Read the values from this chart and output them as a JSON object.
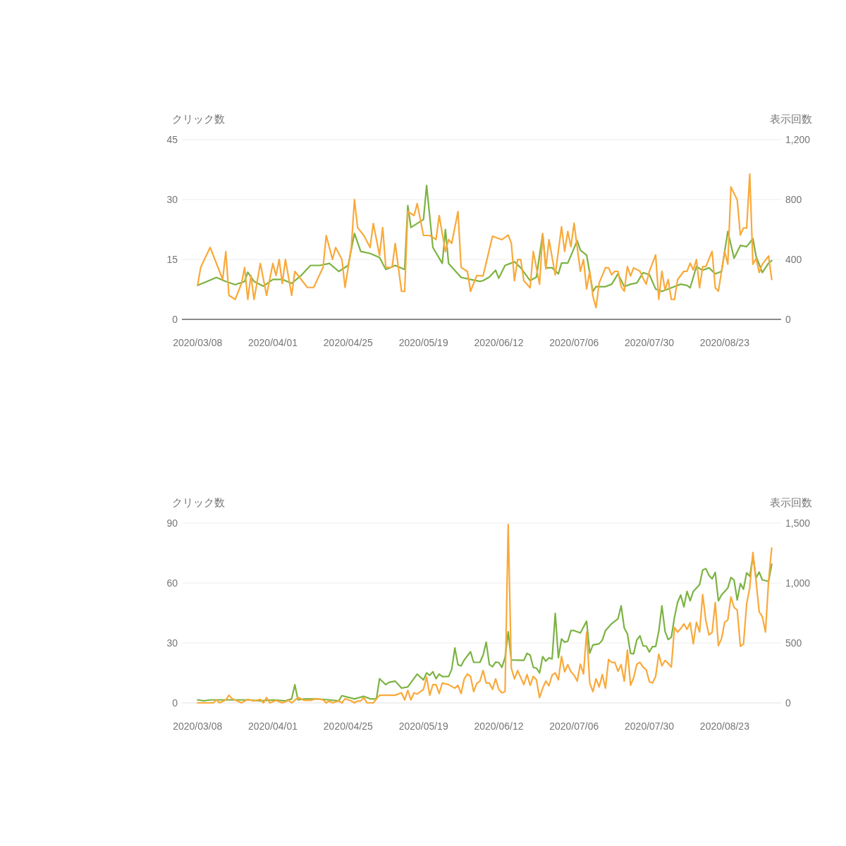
{
  "chart_data": [
    {
      "type": "line",
      "ylabel": "クリック数",
      "y2label": "表示回数",
      "xlim": [
        "2020-03-03",
        "2020-09-10"
      ],
      "xticks": [
        {
          "value": "2020-03-08",
          "label": "2020/03/08"
        },
        {
          "value": "2020-04-01",
          "label": "2020/04/01"
        },
        {
          "value": "2020-04-25",
          "label": "2020/04/25"
        },
        {
          "value": "2020-05-19",
          "label": "2020/05/19"
        },
        {
          "value": "2020-06-12",
          "label": "2020/06/12"
        },
        {
          "value": "2020-07-06",
          "label": "2020/07/06"
        },
        {
          "value": "2020-07-30",
          "label": "2020/07/30"
        },
        {
          "value": "2020-08-23",
          "label": "2020/08/23"
        }
      ],
      "ylim": [
        0,
        45
      ],
      "yticks": [
        0,
        15,
        30,
        45
      ],
      "y2lim": [
        0,
        1200
      ],
      "y2ticks": [
        0,
        400,
        800,
        {
          "value": 1200,
          "label": "1,200"
        }
      ],
      "grid": "y",
      "series": [
        {
          "color": "#7cb342",
          "x": [
            "2020-03-08",
            "2020-03-11",
            "2020-03-14",
            "2020-03-17",
            "2020-03-20",
            "2020-03-23",
            "2020-03-24",
            "2020-03-26",
            "2020-03-29",
            "2020-04-01",
            "2020-04-04",
            "2020-04-07",
            "2020-04-10",
            "2020-04-13",
            "2020-04-16",
            "2020-04-19",
            "2020-04-22",
            "2020-04-25",
            "2020-04-27",
            "2020-04-29",
            "2020-05-02",
            "2020-05-05",
            "2020-05-07",
            "2020-05-10",
            "2020-05-13",
            "2020-05-14",
            "2020-05-15",
            "2020-05-19",
            "2020-05-20",
            "2020-05-22",
            "2020-05-25",
            "2020-05-26",
            "2020-05-27",
            "2020-05-31",
            "2020-06-03",
            "2020-06-06",
            "2020-06-07",
            "2020-06-09",
            "2020-06-11",
            "2020-06-12",
            "2020-06-14",
            "2020-06-16",
            "2020-06-17",
            "2020-06-19",
            "2020-06-22",
            "2020-06-24",
            "2020-06-26",
            "2020-06-27",
            "2020-06-29",
            "2020-07-01",
            "2020-07-02",
            "2020-07-04",
            "2020-07-07",
            "2020-07-08",
            "2020-07-10",
            "2020-07-12",
            "2020-07-13",
            "2020-07-16",
            "2020-07-18",
            "2020-07-20",
            "2020-07-22",
            "2020-07-24",
            "2020-07-26",
            "2020-07-28",
            "2020-07-30",
            "2020-08-01",
            "2020-08-03",
            "2020-08-05",
            "2020-08-07",
            "2020-08-09",
            "2020-08-11",
            "2020-08-12",
            "2020-08-14",
            "2020-08-16",
            "2020-08-18",
            "2020-08-20",
            "2020-08-22",
            "2020-08-23",
            "2020-08-24",
            "2020-08-26",
            "2020-08-28",
            "2020-08-30",
            "2020-09-01",
            "2020-09-02",
            "2020-09-04",
            "2020-09-06",
            "2020-09-07"
          ],
          "values": [
            8.5,
            9.5,
            10.5,
            9.5,
            8.7,
            9.5,
            11.8,
            9.5,
            8.3,
            10,
            10,
            9,
            11,
            13.5,
            13.5,
            14,
            12,
            13.5,
            21.5,
            17,
            16.5,
            15.5,
            12.5,
            13.5,
            12.5,
            28.5,
            23,
            25,
            33.5,
            18,
            14,
            22.5,
            14,
            10.5,
            10,
            9.5,
            9.7,
            10.6,
            12.3,
            10.3,
            13.5,
            14.1,
            14.4,
            12.9,
            9.7,
            10.6,
            21.4,
            12.9,
            12.9,
            11.4,
            14.1,
            14.1,
            19.7,
            17.3,
            16.1,
            7,
            8.2,
            8.2,
            8.8,
            11.4,
            8.2,
            8.8,
            9.1,
            11.7,
            11.2,
            7.6,
            7,
            7.6,
            8.2,
            8.8,
            8.5,
            7.9,
            13.2,
            12.3,
            12.9,
            11.4,
            12,
            17,
            22,
            15.3,
            18.5,
            18.2,
            20.2,
            15.8,
            11.7,
            14.1,
            14.7
          ]
        },
        {
          "color": "#f9a93a",
          "axis": "y2",
          "x": [
            "2020-03-08",
            "2020-03-09",
            "2020-03-12",
            "2020-03-16",
            "2020-03-17",
            "2020-03-18",
            "2020-03-20",
            "2020-03-22",
            "2020-03-23",
            "2020-03-24",
            "2020-03-25",
            "2020-03-26",
            "2020-03-28",
            "2020-03-30",
            "2020-04-01",
            "2020-04-02",
            "2020-04-03",
            "2020-04-04",
            "2020-04-05",
            "2020-04-07",
            "2020-04-08",
            "2020-04-10",
            "2020-04-12",
            "2020-04-14",
            "2020-04-17",
            "2020-04-18",
            "2020-04-20",
            "2020-04-21",
            "2020-04-23",
            "2020-04-24",
            "2020-04-26",
            "2020-04-27",
            "2020-04-28",
            "2020-04-30",
            "2020-05-02",
            "2020-05-03",
            "2020-05-05",
            "2020-05-06",
            "2020-05-07",
            "2020-05-09",
            "2020-05-10",
            "2020-05-12",
            "2020-05-13",
            "2020-05-14",
            "2020-05-16",
            "2020-05-17",
            "2020-05-19",
            "2020-05-21",
            "2020-05-23",
            "2020-05-24",
            "2020-05-26",
            "2020-05-27",
            "2020-05-28",
            "2020-05-30",
            "2020-05-31",
            "2020-06-02",
            "2020-06-03",
            "2020-06-05",
            "2020-06-07",
            "2020-06-10",
            "2020-06-13",
            "2020-06-15",
            "2020-06-16",
            "2020-06-17",
            "2020-06-18",
            "2020-06-19",
            "2020-06-20",
            "2020-06-22",
            "2020-06-23",
            "2020-06-25",
            "2020-06-26",
            "2020-06-27",
            "2020-06-28",
            "2020-06-30",
            "2020-07-02",
            "2020-07-03",
            "2020-07-04",
            "2020-07-05",
            "2020-07-06",
            "2020-07-08",
            "2020-07-09",
            "2020-07-10",
            "2020-07-11",
            "2020-07-12",
            "2020-07-13",
            "2020-07-14",
            "2020-07-16",
            "2020-07-17",
            "2020-07-18",
            "2020-07-19",
            "2020-07-20",
            "2020-07-21",
            "2020-07-22",
            "2020-07-23",
            "2020-07-24",
            "2020-07-25",
            "2020-07-27",
            "2020-07-28",
            "2020-07-29",
            "2020-07-30",
            "2020-08-01",
            "2020-08-02",
            "2020-08-03",
            "2020-08-04",
            "2020-08-05",
            "2020-08-06",
            "2020-08-07",
            "2020-08-08",
            "2020-08-10",
            "2020-08-11",
            "2020-08-12",
            "2020-08-13",
            "2020-08-14",
            "2020-08-15",
            "2020-08-16",
            "2020-08-17",
            "2020-08-19",
            "2020-08-20",
            "2020-08-21",
            "2020-08-22",
            "2020-08-23",
            "2020-08-24",
            "2020-08-25",
            "2020-08-27",
            "2020-08-28",
            "2020-08-29",
            "2020-08-30",
            "2020-08-31",
            "2020-09-01",
            "2020-09-02",
            "2020-09-03",
            "2020-09-04",
            "2020-09-06",
            "2020-09-07"
          ],
          "values": [
            227,
            347,
            480,
            267,
            453,
            160,
            133,
            240,
            347,
            133,
            293,
            133,
            373,
            160,
            373,
            293,
            400,
            240,
            400,
            160,
            320,
            267,
            213,
            213,
            347,
            560,
            400,
            480,
            400,
            213,
            480,
            800,
            613,
            560,
            480,
            640,
            427,
            613,
            347,
            347,
            507,
            187,
            187,
            720,
            693,
            773,
            560,
            560,
            533,
            693,
            453,
            533,
            507,
            720,
            347,
            320,
            187,
            293,
            290,
            555,
            532,
            563,
            509,
            258,
            399,
            399,
            258,
            211,
            454,
            235,
            571,
            336,
            532,
            297,
            618,
            454,
            587,
            485,
            642,
            321,
            399,
            203,
            321,
            156,
            78,
            243,
            344,
            344,
            297,
            321,
            321,
            219,
            188,
            352,
            290,
            344,
            321,
            274,
            235,
            321,
            430,
            133,
            321,
            196,
            266,
            133,
            133,
            266,
            321,
            321,
            375,
            329,
            399,
            211,
            352,
            352,
            454,
            211,
            188,
            321,
            454,
            368,
            884,
            798,
            563,
            610,
            610,
            970,
            368,
            407,
            313,
            368,
            423,
            266
          ]
        }
      ]
    },
    {
      "type": "line",
      "ylabel": "クリック数",
      "y2label": "表示回数",
      "xlim": [
        "2020-03-03",
        "2020-09-10"
      ],
      "xticks": [
        {
          "value": "2020-03-08",
          "label": "2020/03/08"
        },
        {
          "value": "2020-04-01",
          "label": "2020/04/01"
        },
        {
          "value": "2020-04-25",
          "label": "2020/04/25"
        },
        {
          "value": "2020-05-19",
          "label": "2020/05/19"
        },
        {
          "value": "2020-06-12",
          "label": "2020/06/12"
        },
        {
          "value": "2020-07-06",
          "label": "2020/07/06"
        },
        {
          "value": "2020-07-30",
          "label": "2020/07/30"
        },
        {
          "value": "2020-08-23",
          "label": "2020/08/23"
        }
      ],
      "ylim": [
        0,
        90
      ],
      "yticks": [
        0,
        30,
        60,
        90
      ],
      "y2lim": [
        0,
        1500
      ],
      "y2ticks": [
        0,
        500,
        {
          "value": 1000,
          "label": "1,000"
        },
        {
          "value": 1500,
          "label": "1,500"
        }
      ],
      "grid": "y",
      "series": [
        {
          "color": "#7cb342",
          "x": [
            "2020-03-08",
            "2020-03-10",
            "2020-03-12",
            "2020-03-16",
            "2020-03-20",
            "2020-03-24",
            "2020-03-28",
            "2020-04-01",
            "2020-04-05",
            "2020-04-07",
            "2020-04-08",
            "2020-04-09",
            "2020-04-11",
            "2020-04-15",
            "2020-04-19",
            "2020-04-22",
            "2020-04-23",
            "2020-04-27",
            "2020-04-30",
            "2020-05-02",
            "2020-05-04",
            "2020-05-05",
            "2020-05-07",
            "2020-05-08",
            "2020-05-10",
            "2020-05-12",
            "2020-05-14",
            "2020-05-17",
            "2020-05-19",
            "2020-05-20",
            "2020-05-21",
            "2020-05-22",
            "2020-05-23",
            "2020-05-24",
            "2020-05-25",
            "2020-05-27",
            "2020-05-28",
            "2020-05-29",
            "2020-05-30",
            "2020-05-31",
            "2020-06-01",
            "2020-06-03",
            "2020-06-04",
            "2020-06-06",
            "2020-06-07",
            "2020-06-08",
            "2020-06-09",
            "2020-06-10",
            "2020-06-11",
            "2020-06-12",
            "2020-06-13",
            "2020-06-14",
            "2020-06-15",
            "2020-06-16",
            "2020-06-20",
            "2020-06-21",
            "2020-06-22",
            "2020-06-23",
            "2020-06-24",
            "2020-06-25",
            "2020-06-26",
            "2020-06-27",
            "2020-06-28",
            "2020-06-29",
            "2020-06-30",
            "2020-07-01",
            "2020-07-02",
            "2020-07-03",
            "2020-07-04",
            "2020-07-05",
            "2020-07-06",
            "2020-07-08",
            "2020-07-10",
            "2020-07-11",
            "2020-07-12",
            "2020-07-14",
            "2020-07-15",
            "2020-07-16",
            "2020-07-18",
            "2020-07-20",
            "2020-07-21",
            "2020-07-22",
            "2020-07-23",
            "2020-07-24",
            "2020-07-25",
            "2020-07-26",
            "2020-07-27",
            "2020-07-28",
            "2020-07-29",
            "2020-07-30",
            "2020-07-31",
            "2020-08-01",
            "2020-08-02",
            "2020-08-03",
            "2020-08-04",
            "2020-08-05",
            "2020-08-06",
            "2020-08-07",
            "2020-08-08",
            "2020-08-09",
            "2020-08-10",
            "2020-08-11",
            "2020-08-12",
            "2020-08-13",
            "2020-08-15",
            "2020-08-16",
            "2020-08-17",
            "2020-08-18",
            "2020-08-19",
            "2020-08-20",
            "2020-08-21",
            "2020-08-22",
            "2020-08-24",
            "2020-08-25",
            "2020-08-26",
            "2020-08-27",
            "2020-08-28",
            "2020-08-29",
            "2020-08-30",
            "2020-08-31",
            "2020-09-01",
            "2020-09-02",
            "2020-09-03",
            "2020-09-04",
            "2020-09-06",
            "2020-09-07"
          ],
          "values": [
            1.5,
            1,
            1.5,
            1.5,
            1.5,
            1.5,
            1,
            1.5,
            1,
            2,
            9.1,
            1.5,
            2,
            2,
            1.5,
            1,
            3.6,
            2,
            3.3,
            2,
            2,
            12.1,
            9.1,
            10.3,
            10.9,
            7.4,
            8,
            14.4,
            11.5,
            15,
            13.8,
            15.6,
            12.1,
            14.4,
            13.2,
            13.2,
            16.8,
            27.5,
            19.1,
            18.5,
            21.5,
            25.6,
            20.3,
            20.3,
            23.9,
            30.4,
            19.2,
            18.1,
            20.4,
            20.2,
            17.8,
            22.7,
            35.6,
            21.5,
            21.3,
            24.8,
            23.9,
            17.8,
            17.4,
            15,
            23.2,
            20.9,
            22.6,
            22,
            44.8,
            22.6,
            32,
            30.4,
            30.9,
            36.2,
            36.2,
            35,
            40.9,
            24.9,
            29,
            29.6,
            31.4,
            36.2,
            39.7,
            42.1,
            48.6,
            37.5,
            34.6,
            24.8,
            24.6,
            31.5,
            33.6,
            28.5,
            28.5,
            25.5,
            28.2,
            28.2,
            35.8,
            48.6,
            35.8,
            31.7,
            32.9,
            42.8,
            50.4,
            54,
            48.1,
            55.8,
            51.1,
            55.8,
            59.2,
            66.5,
            67.2,
            63.9,
            62.1,
            65.3,
            51.1,
            54,
            57.5,
            62.8,
            61.5,
            51.5,
            59.7,
            56.9,
            65.1,
            63.4,
            73.4,
            62.6,
            65.5,
            61.6,
            60.8,
            69.4
          ]
        },
        {
          "color": "#f9a93a",
          "axis": "y2",
          "x": [
            "2020-03-08",
            "2020-03-11",
            "2020-03-13",
            "2020-03-14",
            "2020-03-15",
            "2020-03-17",
            "2020-03-18",
            "2020-03-19",
            "2020-03-22",
            "2020-03-24",
            "2020-03-26",
            "2020-03-28",
            "2020-03-29",
            "2020-03-30",
            "2020-03-31",
            "2020-04-02",
            "2020-04-04",
            "2020-04-06",
            "2020-04-07",
            "2020-04-09",
            "2020-04-11",
            "2020-04-13",
            "2020-04-15",
            "2020-04-17",
            "2020-04-18",
            "2020-04-19",
            "2020-04-20",
            "2020-04-22",
            "2020-04-23",
            "2020-04-24",
            "2020-04-26",
            "2020-04-27",
            "2020-04-28",
            "2020-04-29",
            "2020-04-30",
            "2020-05-01",
            "2020-05-03",
            "2020-05-05",
            "2020-05-10",
            "2020-05-12",
            "2020-05-13",
            "2020-05-14",
            "2020-05-15",
            "2020-05-16",
            "2020-05-17",
            "2020-05-19",
            "2020-05-20",
            "2020-05-21",
            "2020-05-22",
            "2020-05-23",
            "2020-05-24",
            "2020-05-25",
            "2020-05-27",
            "2020-05-29",
            "2020-05-30",
            "2020-05-31",
            "2020-06-01",
            "2020-06-02",
            "2020-06-03",
            "2020-06-04",
            "2020-06-05",
            "2020-06-06",
            "2020-06-07",
            "2020-06-08",
            "2020-06-09",
            "2020-06-10",
            "2020-06-11",
            "2020-06-12",
            "2020-06-13",
            "2020-06-14",
            "2020-06-15",
            "2020-06-16",
            "2020-06-17",
            "2020-06-18",
            "2020-06-20",
            "2020-06-21",
            "2020-06-22",
            "2020-06-23",
            "2020-06-24",
            "2020-06-25",
            "2020-06-26",
            "2020-06-27",
            "2020-06-28",
            "2020-06-29",
            "2020-06-30",
            "2020-07-01",
            "2020-07-02",
            "2020-07-03",
            "2020-07-04",
            "2020-07-05",
            "2020-07-06",
            "2020-07-07",
            "2020-07-08",
            "2020-07-09",
            "2020-07-10",
            "2020-07-11",
            "2020-07-12",
            "2020-07-13",
            "2020-07-14",
            "2020-07-15",
            "2020-07-16",
            "2020-07-17",
            "2020-07-18",
            "2020-07-19",
            "2020-07-20",
            "2020-07-21",
            "2020-07-22",
            "2020-07-23",
            "2020-07-24",
            "2020-07-25",
            "2020-07-26",
            "2020-07-27",
            "2020-07-28",
            "2020-07-29",
            "2020-07-30",
            "2020-07-31",
            "2020-08-01",
            "2020-08-02",
            "2020-08-03",
            "2020-08-04",
            "2020-08-05",
            "2020-08-06",
            "2020-08-07",
            "2020-08-08",
            "2020-08-09",
            "2020-08-10",
            "2020-08-11",
            "2020-08-12",
            "2020-08-13",
            "2020-08-14",
            "2020-08-15",
            "2020-08-16",
            "2020-08-17",
            "2020-08-18",
            "2020-08-19",
            "2020-08-20",
            "2020-08-21",
            "2020-08-22",
            "2020-08-23",
            "2020-08-24",
            "2020-08-25",
            "2020-08-26",
            "2020-08-27",
            "2020-08-28",
            "2020-08-29",
            "2020-08-30",
            "2020-08-31",
            "2020-09-01",
            "2020-09-02",
            "2020-09-03",
            "2020-09-04",
            "2020-09-05",
            "2020-09-06",
            "2020-09-07"
          ],
          "values": [
            0,
            0,
            0,
            25,
            0,
            25,
            64,
            35,
            0,
            29,
            16,
            29,
            0,
            45,
            0,
            21,
            0,
            21,
            0,
            45,
            21,
            21,
            35,
            25,
            0,
            16,
            0,
            16,
            0,
            35,
            16,
            0,
            16,
            16,
            45,
            0,
            0,
            64,
            64,
            84,
            25,
            104,
            25,
            84,
            74,
            113,
            215,
            64,
            152,
            152,
            78,
            166,
            152,
            123,
            146,
            78,
            201,
            241,
            221,
            94,
            162,
            182,
            270,
            166,
            166,
            113,
            201,
            113,
            84,
            94,
            1488,
            290,
            201,
            270,
            153,
            237,
            147,
            221,
            192,
            45,
            123,
            182,
            143,
            231,
            250,
            192,
            387,
            260,
            319,
            260,
            231,
            182,
            323,
            241,
            591,
            166,
            94,
            201,
            133,
            237,
            123,
            362,
            338,
            338,
            264,
            319,
            182,
            440,
            147,
            211,
            323,
            338,
            299,
            276,
            176,
            166,
            221,
            407,
            309,
            354,
            329,
            299,
            630,
            591,
            620,
            659,
            614,
            669,
            493,
            673,
            591,
            904,
            685,
            567,
            587,
            838,
            477,
            536,
            673,
            692,
            884,
            796,
            776,
            472,
            491,
            825,
            962,
            1256,
            1018,
            759,
            720,
            591,
            1018,
            1292
          ]
        }
      ]
    }
  ]
}
